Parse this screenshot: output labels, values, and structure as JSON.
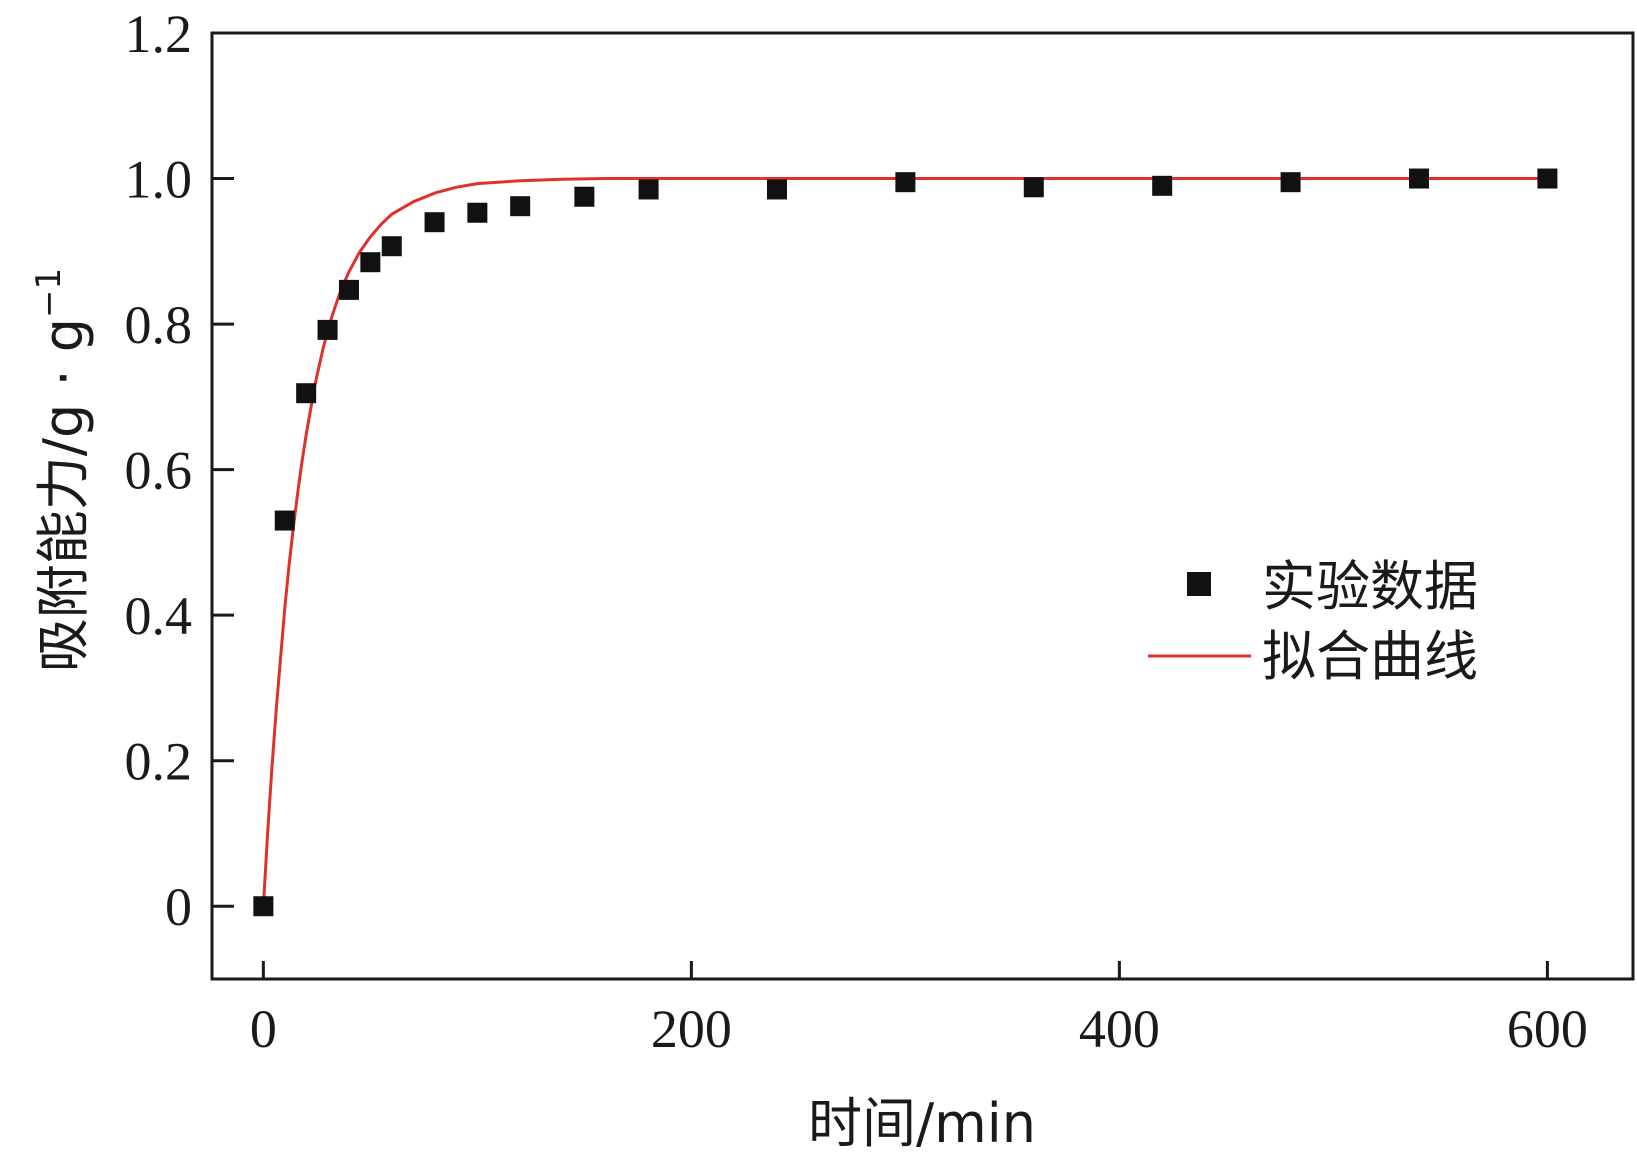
{
  "chart_data": {
    "type": "scatter",
    "xlabel": "时间/min",
    "ylabel": "吸附能力/g · g",
    "ylabel_sup": "−1",
    "xlim": [
      -24,
      640
    ],
    "ylim": [
      -0.1,
      1.2
    ],
    "xticks": [
      0,
      200,
      400,
      600
    ],
    "xtick_labels": [
      "0",
      "200",
      "400",
      "600"
    ],
    "yticks": [
      0,
      0.2,
      0.4,
      0.6,
      0.8,
      1.0,
      1.2
    ],
    "ytick_labels": [
      "0",
      "0.2",
      "0.4",
      "0.6",
      "0.8",
      "1.0",
      "1.2"
    ],
    "grid": false,
    "legend_position": "center-right",
    "series": [
      {
        "name": "实验数据",
        "kind": "scatter",
        "marker": "square",
        "color": "#111111",
        "x": [
          0,
          10,
          20,
          30,
          40,
          50,
          60,
          80,
          100,
          120,
          150,
          180,
          240,
          300,
          360,
          420,
          480,
          540,
          600
        ],
        "y": [
          0.0,
          0.53,
          0.705,
          0.792,
          0.847,
          0.885,
          0.907,
          0.94,
          0.953,
          0.962,
          0.975,
          0.985,
          0.985,
          0.995,
          0.988,
          0.99,
          0.995,
          1.0,
          1.0
        ]
      },
      {
        "name": "拟合曲线",
        "kind": "line",
        "color": "#e0302a",
        "x": [
          0,
          2,
          4,
          6,
          8,
          10,
          12,
          14,
          16,
          18,
          20,
          24,
          28,
          32,
          36,
          40,
          45,
          50,
          55,
          60,
          70,
          80,
          90,
          100,
          120,
          140,
          160,
          200,
          300,
          400,
          500,
          600
        ],
        "y": [
          0.0,
          0.1,
          0.19,
          0.27,
          0.34,
          0.41,
          0.468,
          0.52,
          0.567,
          0.61,
          0.648,
          0.715,
          0.768,
          0.81,
          0.845,
          0.872,
          0.899,
          0.92,
          0.937,
          0.951,
          0.968,
          0.98,
          0.988,
          0.993,
          0.997,
          0.999,
          1.0,
          1.0,
          1.0,
          1.0,
          1.0,
          1.0
        ]
      }
    ]
  }
}
